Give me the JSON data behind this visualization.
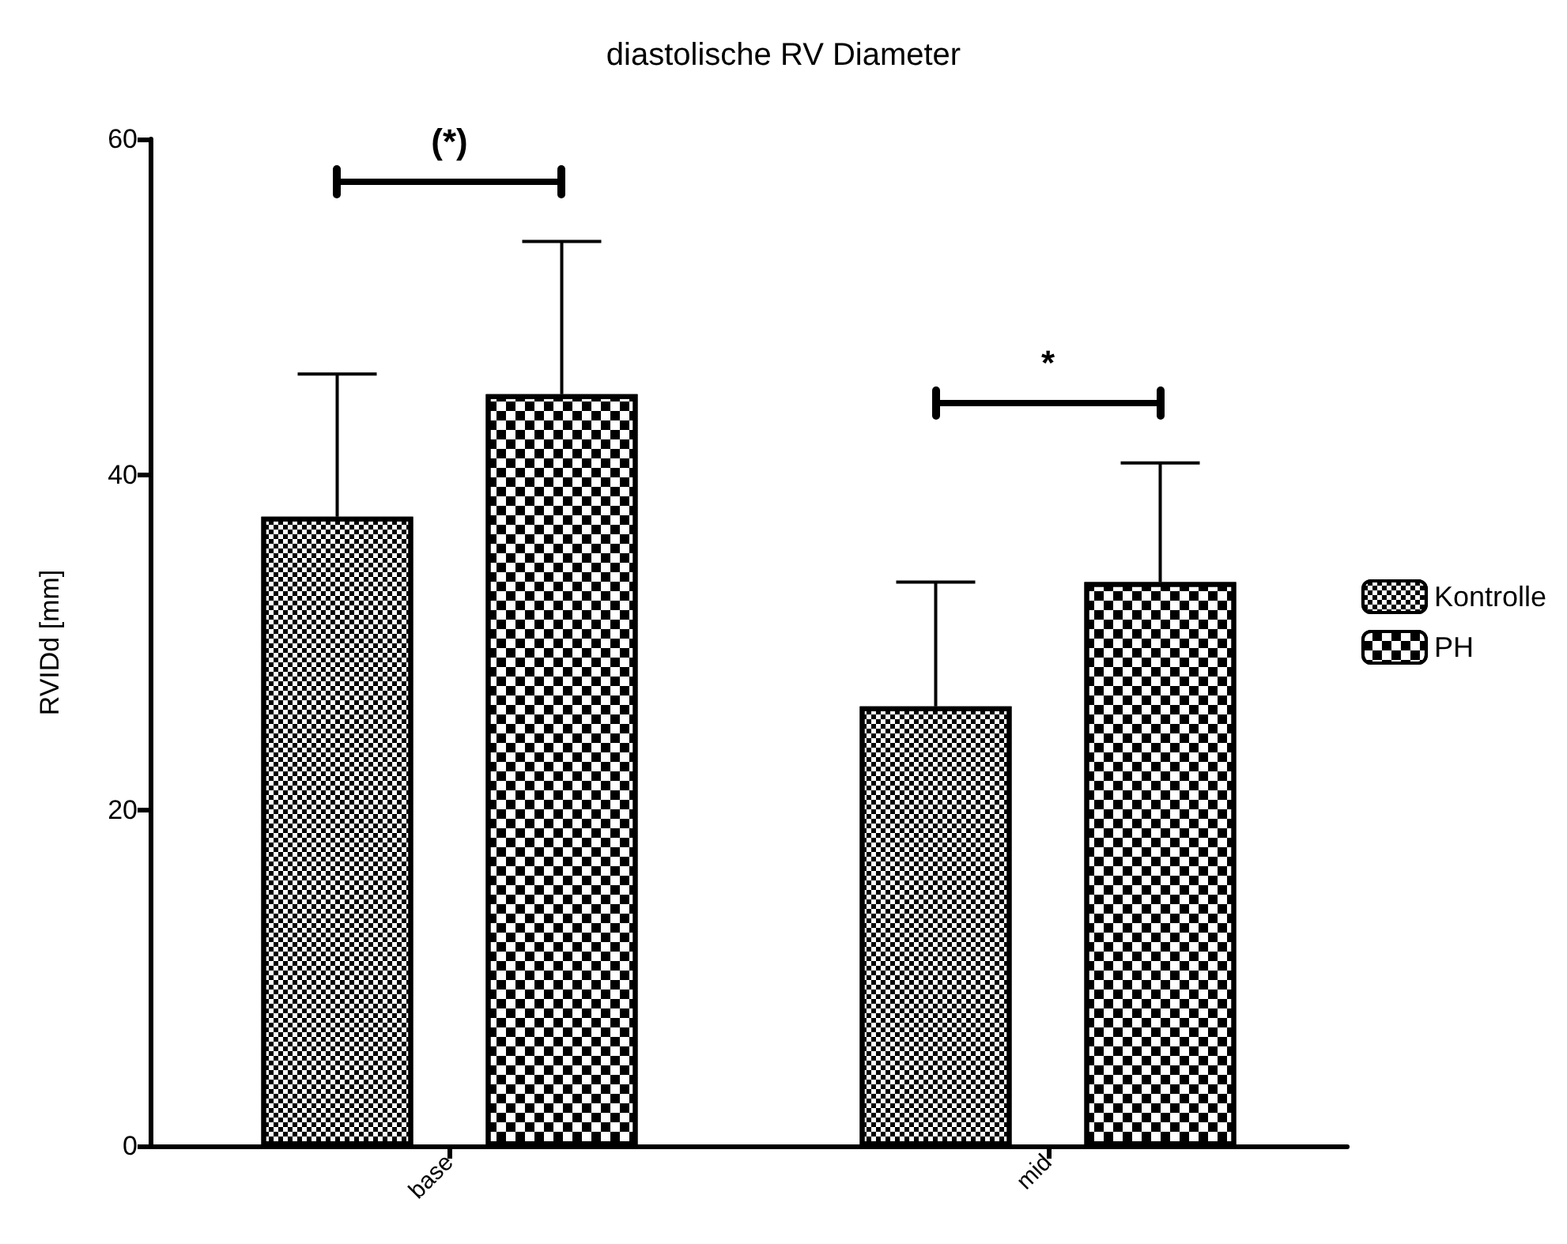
{
  "chart_data": {
    "type": "bar",
    "title": "diastolische RV Diameter",
    "ylabel": "RVIDd [mm]",
    "categories": [
      "base",
      "mid"
    ],
    "series": [
      {
        "name": "Kontrolle",
        "color": "#000000",
        "values": [
          37.5,
          26.2
        ],
        "errors": [
          [
            37.5,
            46.0
          ],
          [
            26.2,
            33.6
          ]
        ]
      },
      {
        "name": "PH",
        "color": "#000000",
        "values": [
          44.8,
          33.6
        ],
        "errors": [
          [
            44.8,
            53.9
          ],
          [
            33.6,
            40.7
          ]
        ]
      }
    ],
    "ylim": [
      0,
      60
    ],
    "yticks": [
      0,
      20,
      40,
      60
    ],
    "grid": false,
    "legend": "right",
    "annotations": [
      "(*)",
      "*"
    ]
  }
}
